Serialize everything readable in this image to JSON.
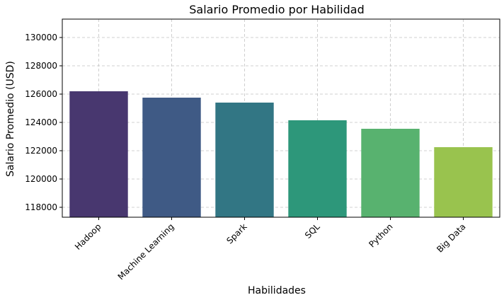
{
  "chart_data": {
    "type": "bar",
    "title": "Salario Promedio por Habilidad",
    "xlabel": "Habilidades",
    "ylabel": "Salario Promedio (USD)",
    "categories": [
      "Hadoop",
      "Machine Learning",
      "Spark",
      "SQL",
      "Python",
      "Big Data"
    ],
    "values": [
      126200,
      125750,
      125400,
      124150,
      123550,
      122250
    ],
    "colors": [
      "#48376f",
      "#3f5a85",
      "#327684",
      "#2d977a",
      "#58b26f",
      "#99c34e"
    ],
    "ylim": [
      117300,
      131300
    ],
    "yticks": [
      118000,
      120000,
      122000,
      124000,
      126000,
      128000,
      130000
    ],
    "grid": true,
    "legend": "none"
  }
}
